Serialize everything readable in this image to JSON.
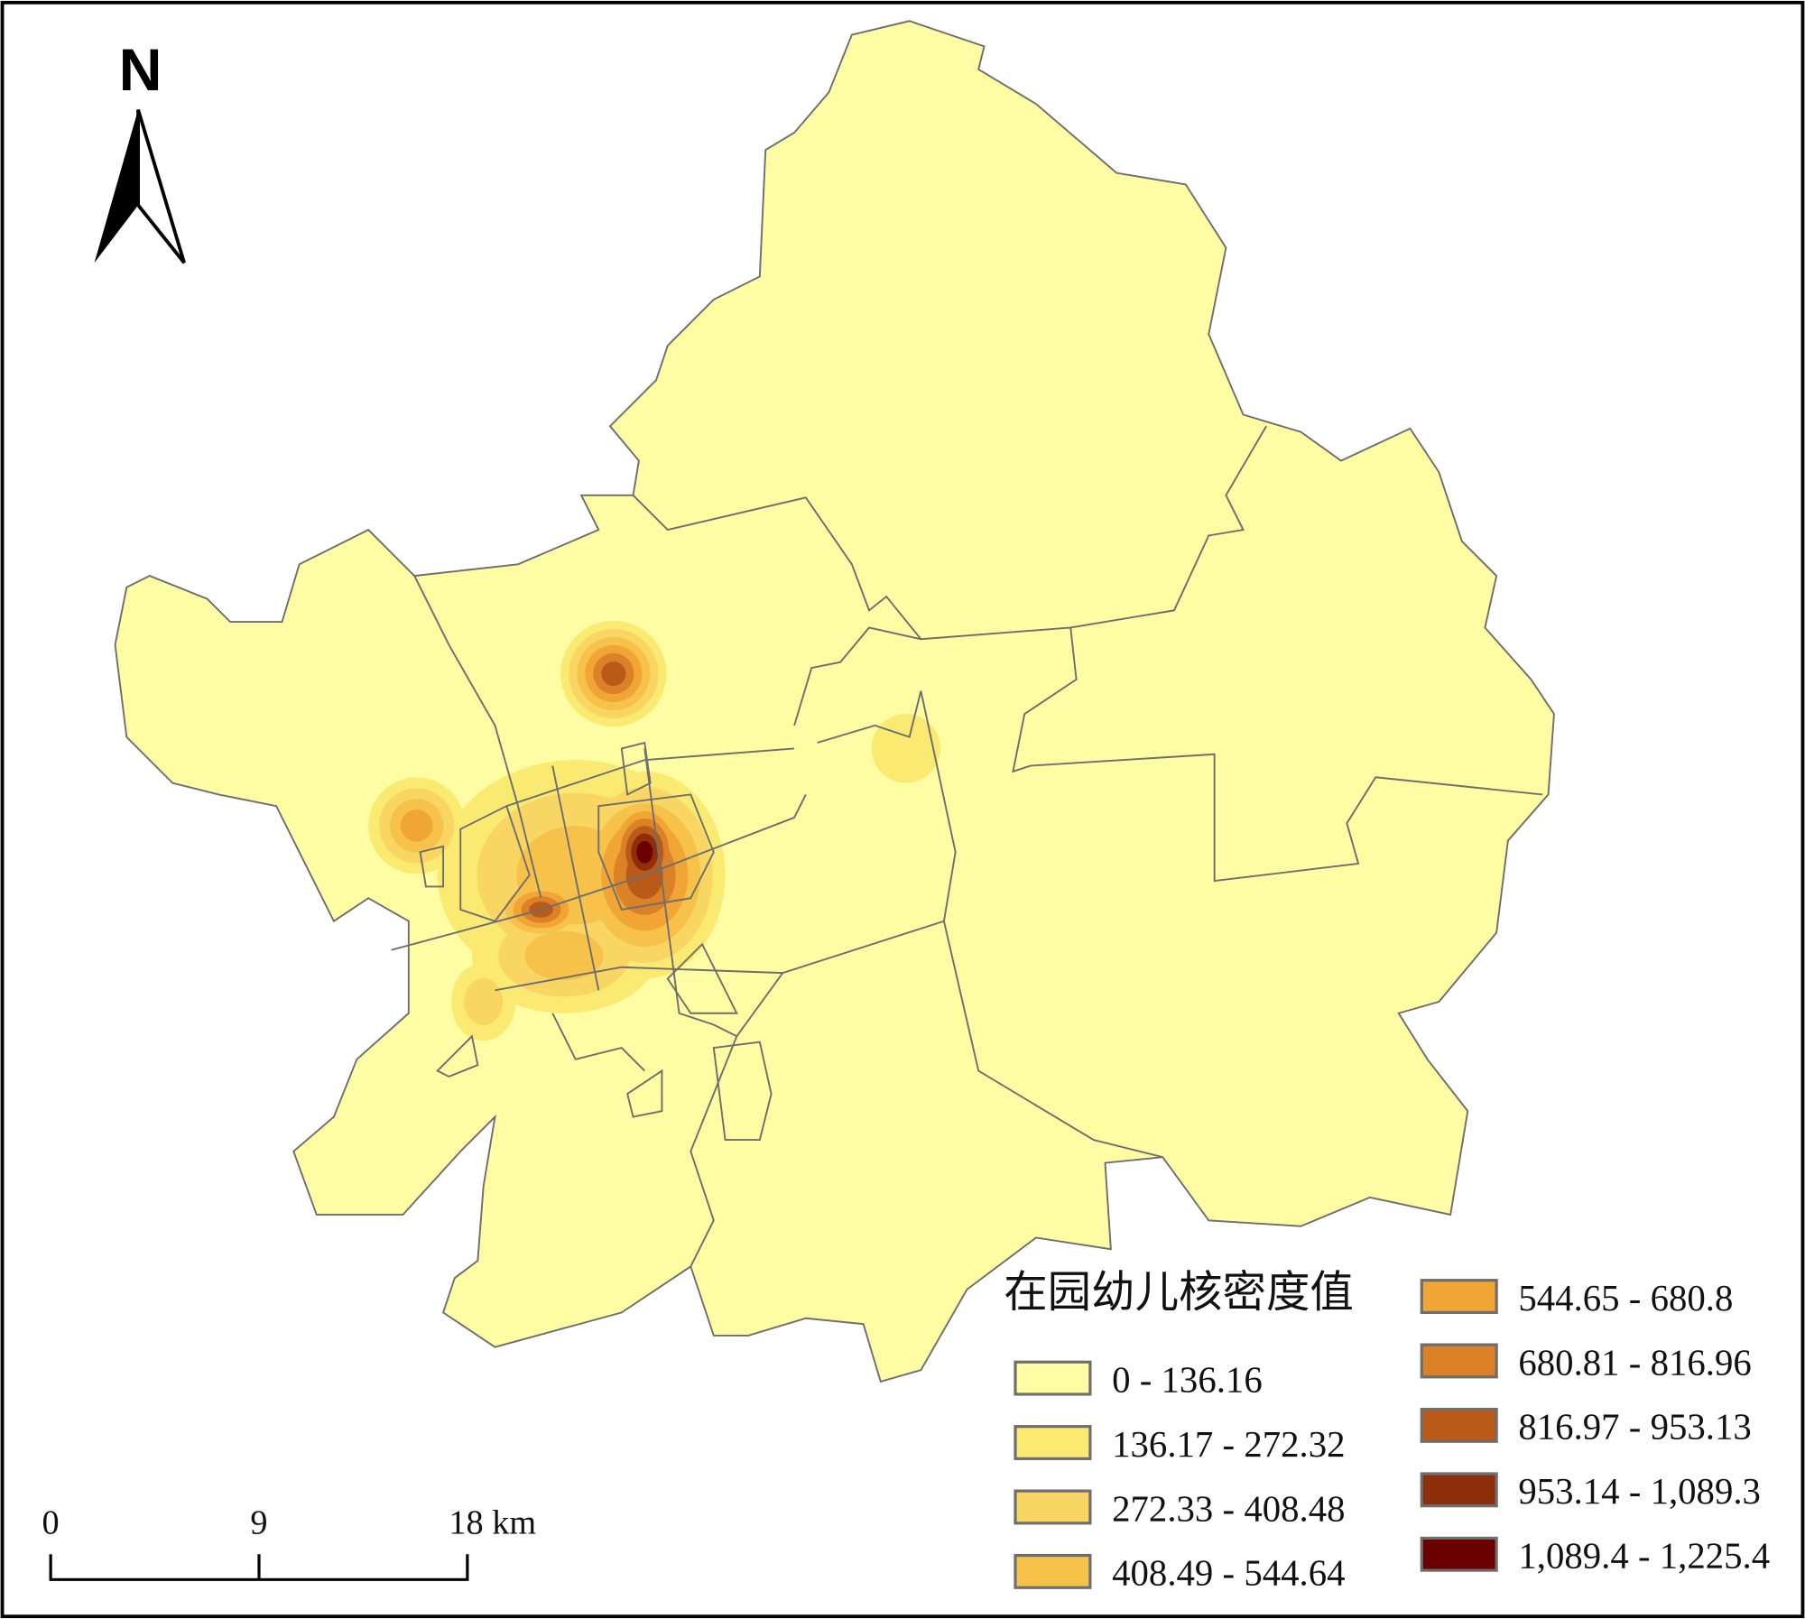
{
  "legend": {
    "title": "在园幼儿核密度值",
    "classes": [
      {
        "label": "0 - 136.16",
        "color": "#FFFDA3"
      },
      {
        "label": "136.17 - 272.32",
        "color": "#FBEA72"
      },
      {
        "label": "272.33 - 408.48",
        "color": "#F9D664"
      },
      {
        "label": "408.49 - 544.64",
        "color": "#F6C24A"
      },
      {
        "label": "544.65 - 680.8",
        "color": "#F0A535"
      },
      {
        "label": "680.81 - 816.96",
        "color": "#DB8228"
      },
      {
        "label": "816.97 - 953.13",
        "color": "#B95A18"
      },
      {
        "label": "953.14 - 1,089.3",
        "color": "#8F2E0A"
      },
      {
        "label": "1,089.4 - 1,225.4",
        "color": "#6B0000"
      }
    ]
  },
  "north_arrow": {
    "label": "N"
  },
  "scale_bar": {
    "ticks": [
      "0",
      "9",
      "18 km"
    ]
  },
  "colors": {
    "boundary": "#6E6E6E",
    "frame": "#000000"
  }
}
